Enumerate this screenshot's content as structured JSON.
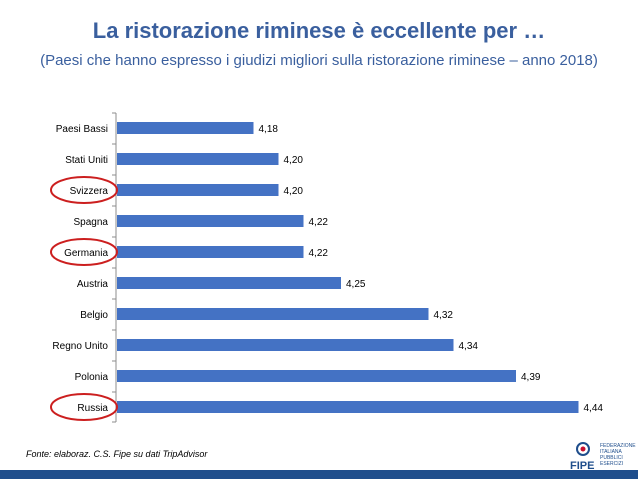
{
  "title": "La ristorazione riminese è eccellente per …",
  "subtitle": "(Paesi che hanno espresso i giudizi migliori sulla ristorazione riminese – anno 2018)",
  "source": "Fonte: elaboraz. C.S. Fipe su dati TripAdvisor",
  "logo": {
    "name": "FIPE",
    "lines": [
      "FEDERAZIONE",
      "ITALIANA",
      "PUBBLICI",
      "ESERCIZI"
    ]
  },
  "colors": {
    "title": "#3a5f9e",
    "bar": "#4472c4",
    "highlight_circle": "#cc1f1f",
    "bottom_bar": "#1f4e8c"
  },
  "chart_data": {
    "type": "bar",
    "orientation": "horizontal",
    "categories": [
      "Paesi Bassi",
      "Stati Uniti",
      "Svizzera",
      "Spagna",
      "Germania",
      "Austria",
      "Belgio",
      "Regno Unito",
      "Polonia",
      "Russia"
    ],
    "values": [
      4.18,
      4.2,
      4.2,
      4.22,
      4.22,
      4.25,
      4.32,
      4.34,
      4.39,
      4.44
    ],
    "data_labels": [
      "4,18",
      "4,20",
      "4,20",
      "4,22",
      "4,22",
      "4,25",
      "4,32",
      "4,34",
      "4,39",
      "4,44"
    ],
    "highlighted": [
      "Svizzera",
      "Germania",
      "Russia"
    ],
    "xlim": [
      4.0,
      4.46
    ],
    "xlabel": "",
    "ylabel": "",
    "grid": false,
    "legend": "none"
  }
}
